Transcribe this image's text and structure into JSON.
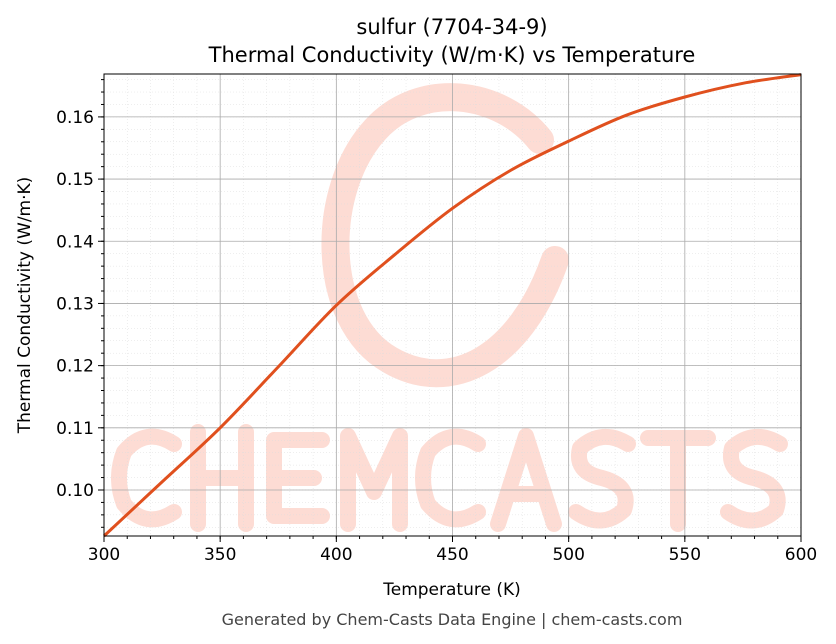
{
  "chart_data": {
    "type": "line",
    "title": "sulfur (7704-34-9)",
    "subtitle": "Thermal Conductivity (W/m·K) vs Temperature",
    "xlabel": "Temperature (K)",
    "ylabel": "Thermal Conductivity (W/m·K)",
    "xlim": [
      300,
      600
    ],
    "ylim": [
      0.0926,
      0.1669
    ],
    "xticks": [
      300,
      350,
      400,
      450,
      500,
      550,
      600
    ],
    "xtick_labels": [
      "300",
      "350",
      "400",
      "450",
      "500",
      "550",
      "600"
    ],
    "yticks": [
      0.1,
      0.11,
      0.12,
      0.13,
      0.14,
      0.15,
      0.16
    ],
    "ytick_labels": [
      "0.10",
      "0.11",
      "0.12",
      "0.13",
      "0.14",
      "0.15",
      "0.16"
    ],
    "grid": true,
    "series": [
      {
        "color": "#e0501e",
        "x": [
          300,
          325,
          350,
          375,
          400,
          425,
          450,
          475,
          500,
          525,
          550,
          575,
          600
        ],
        "y": [
          0.0926,
          0.1013,
          0.11,
          0.1198,
          0.1297,
          0.1378,
          0.1453,
          0.1514,
          0.1561,
          0.1603,
          0.1632,
          0.1654,
          0.1668
        ]
      }
    ],
    "watermark": "CHEMCASTS"
  },
  "footer": "Generated by Chem-Casts Data Engine | chem-casts.com"
}
